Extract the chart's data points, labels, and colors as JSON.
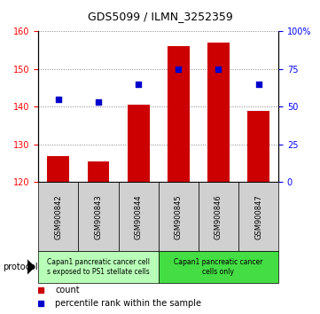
{
  "title": "GDS5099 / ILMN_3252359",
  "samples": [
    "GSM900842",
    "GSM900843",
    "GSM900844",
    "GSM900845",
    "GSM900846",
    "GSM900847"
  ],
  "counts": [
    127.0,
    125.5,
    140.5,
    156.0,
    157.0,
    139.0
  ],
  "percentiles": [
    55,
    53,
    65,
    75,
    75,
    65
  ],
  "ylim_left": [
    120,
    160
  ],
  "ylim_right": [
    0,
    100
  ],
  "yticks_left": [
    120,
    130,
    140,
    150,
    160
  ],
  "yticks_right": [
    0,
    25,
    50,
    75,
    100
  ],
  "yticklabels_right": [
    "0",
    "25",
    "50",
    "75",
    "100%"
  ],
  "bar_color": "#cc0000",
  "dot_color": "#0000cc",
  "bar_width": 0.55,
  "group1_label": "Capan1 pancreatic cancer cell\ns exposed to PS1 stellate cells",
  "group2_label": "Capan1 pancreatic cancer\ncells only",
  "group1_bg": "#b8ffb8",
  "group2_bg": "#44dd44",
  "protocol_label": "protocol",
  "legend_count_label": "count",
  "legend_pct_label": "percentile rank within the sample",
  "sample_bg": "#d0d0d0",
  "plot_bg": "#ffffff",
  "title_fontsize": 9,
  "tick_fontsize": 7,
  "legend_fontsize": 7,
  "sample_fontsize": 6,
  "protocol_fontsize": 7,
  "group_fontsize": 5.5
}
